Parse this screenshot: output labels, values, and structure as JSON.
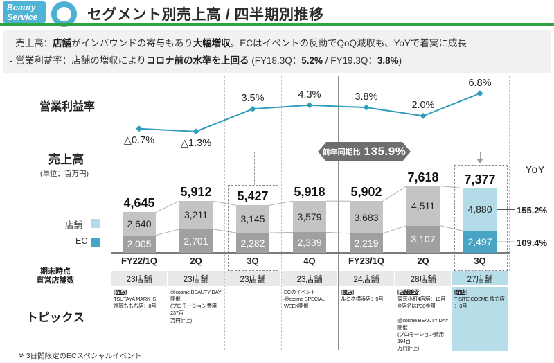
{
  "header": {
    "brand_line1": "Beauty",
    "brand_line2": "Service",
    "title": "セグメント別売上高 / 四半期別推移"
  },
  "summary": {
    "line1": [
      {
        "t": "- 売上高：",
        "b": false
      },
      {
        "t": "店舗",
        "b": true
      },
      {
        "t": "がインバウンドの寄与もあり",
        "b": false
      },
      {
        "t": "大幅増収",
        "b": true
      },
      {
        "t": "。ECはイベントの反動でQoQ減収も、YoYで着実に成長",
        "b": false
      }
    ],
    "line2": [
      {
        "t": "- 営業利益率：店舗の増収により",
        "b": false
      },
      {
        "t": "コロナ前の水準を上回る",
        "b": true
      },
      {
        "t": " (FY18.3Q：",
        "b": false
      },
      {
        "t": "5.2%",
        "b": true
      },
      {
        "t": " / FY19.3Q：",
        "b": false
      },
      {
        "t": "3.8%",
        "b": true
      },
      {
        "t": ")",
        "b": false
      }
    ]
  },
  "labels": {
    "margin_label": "営業利益率",
    "sales_label": "売上高",
    "sales_unit": "(単位：百万円)",
    "store_legend": "店舗",
    "ec_legend": "EC",
    "stores_row_label1": "期末時点",
    "stores_row_label2": "直営店舗数",
    "topics_label": "トピックス",
    "yoy_header": "YoY"
  },
  "footer": {
    "note": "※ 3日間限定のECスペシャルイベント"
  },
  "colors": {
    "accent_teal": "#4fb3d5",
    "line_teal": "#2e9cba",
    "green_rule": "#2da341",
    "bar_store_gray": "#c4c4c4",
    "bar_ec_gray": "#a0a0a0",
    "bar_store_highlight": "#b3dbe8",
    "bar_ec_highlight": "#4aa5c4",
    "badge_gray": "#6e6e6e",
    "highlight_cell_blue": "#b6dde8"
  },
  "chart_data": {
    "type": "bar+line",
    "title": "セグメント別売上高 / 四半期別推移",
    "ylabel": "売上高 (単位：百万円)",
    "categories": [
      "FY22/1Q",
      "2Q",
      "3Q",
      "4Q",
      "FY23/1Q",
      "2Q",
      "3Q"
    ],
    "series": [
      {
        "name": "店舗",
        "values": [
          2640,
          3211,
          3145,
          3579,
          3683,
          4511,
          4880
        ],
        "labels": [
          "2,640",
          "3,211",
          "3,145",
          "3,579",
          "3,683",
          "4,511",
          "4,880"
        ]
      },
      {
        "name": "EC",
        "values": [
          2005,
          2701,
          2282,
          2339,
          2219,
          3107,
          2497
        ],
        "labels": [
          "2,005",
          "2,701",
          "2,282",
          "2,339",
          "2,219",
          "3,107",
          "2,497"
        ]
      }
    ],
    "totals": {
      "values": [
        4645,
        5912,
        5427,
        5918,
        5902,
        7618,
        7377
      ],
      "labels": [
        "4,645",
        "5,912",
        "5,427",
        "5,918",
        "5,902",
        "7,618",
        "7,377"
      ]
    },
    "line": {
      "name": "営業利益率",
      "values": [
        -0.7,
        -1.3,
        3.5,
        4.3,
        3.8,
        2.0,
        6.8
      ],
      "labels": [
        "△0.7%",
        "△1.3%",
        "3.5%",
        "4.3%",
        "3.8%",
        "2.0%",
        "6.8%"
      ]
    },
    "highlight_index": 6,
    "badge": {
      "label": "前年同期比",
      "value": "135.9%"
    },
    "yoy": {
      "store": "155.2%",
      "ec": "109.4%"
    },
    "store_counts": [
      "23店舗",
      "23店舗",
      "23店舗",
      "23店舗",
      "24店舗",
      "28店舗",
      "27店舗"
    ],
    "topics": [
      {
        "tag": "[閉店]",
        "lines": [
          "TSUTAYA MARK IS",
          "福岡ももち店：8月"
        ]
      },
      {
        "tag": "",
        "lines": [
          "@cosme BEAUTY DAY",
          "開催",
          "(プロモーション費用237百",
          "万円計上)"
        ]
      },
      {
        "tag": "",
        "lines": []
      },
      {
        "tag": "",
        "lines": [
          "ECのイベント",
          "@cosme SPECIAL",
          "WEEK開催"
        ]
      },
      {
        "tag": "[開店]",
        "lines": [
          "ルミネ横浜店：9月"
        ]
      },
      {
        "tag": "[店舗譲受]",
        "lines": [
          "東京小町4店舗：10月",
          "※店名はP38参照",
          "",
          "@cosme BEAUTY DAY",
          "開催",
          "(プロモーション費用194百",
          "万円計上)"
        ]
      },
      {
        "tag": "[閉店]",
        "lines": [
          "T-SITE COSME 枚方店",
          "：3月"
        ]
      }
    ]
  }
}
